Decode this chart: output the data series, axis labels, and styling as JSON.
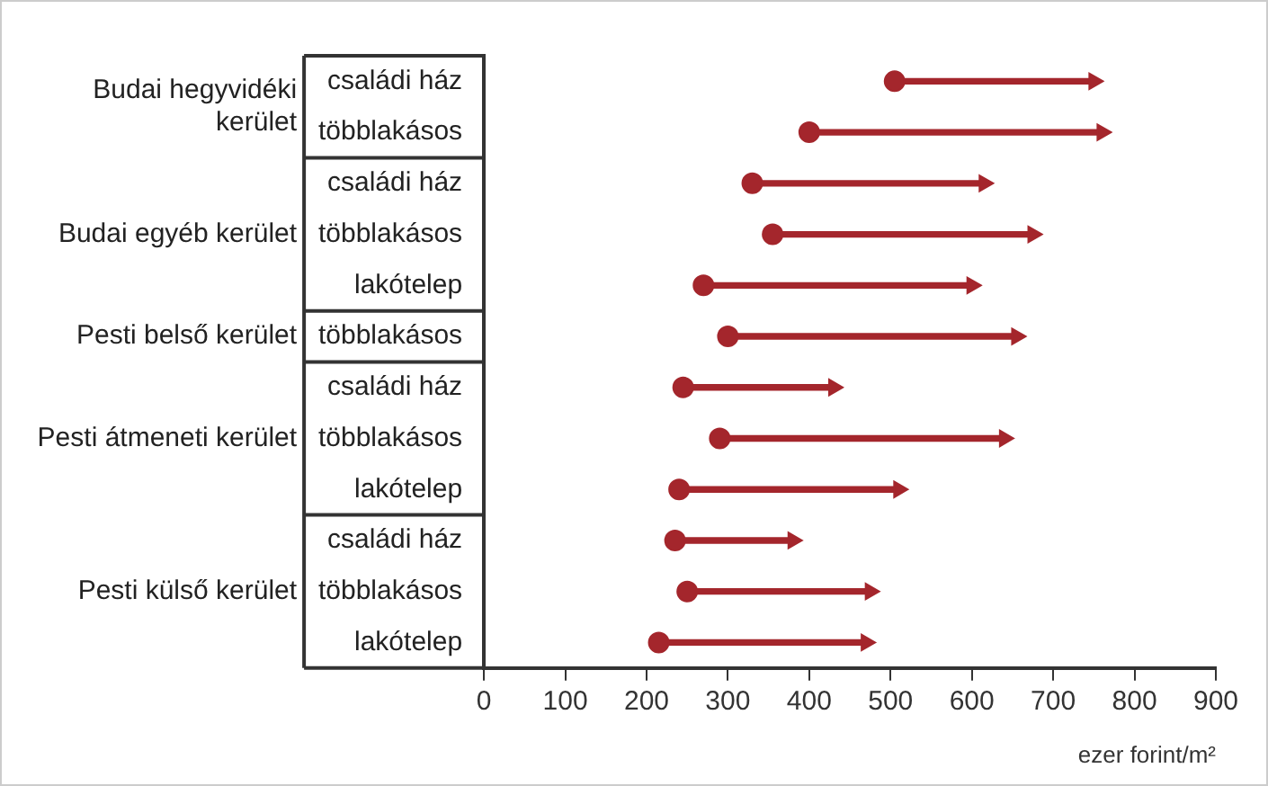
{
  "chart_data": {
    "type": "bar",
    "orientation": "horizontal",
    "xlabel": "ezer forint/m²",
    "categories": [
      "családi ház",
      "többlakásos",
      "családi ház",
      "többlakásos",
      "lakótelep",
      "többlakásos",
      "családi ház",
      "többlakásos",
      "lakótelep",
      "családi ház",
      "többlakásos",
      "lakótelep"
    ],
    "series": [
      {
        "color": "#a4262c",
        "base": [
          505,
          400,
          330,
          355,
          270,
          300,
          245,
          290,
          240,
          235,
          250,
          215
        ],
        "values": [
          245,
          360,
          285,
          320,
          330,
          355,
          185,
          350,
          270,
          145,
          225,
          255
        ]
      },
      {
        "type": "scatter",
        "color": "#a4262c",
        "marker": "circle",
        "values": [
          505,
          400,
          330,
          355,
          270,
          300,
          245,
          290,
          240,
          235,
          250,
          215
        ]
      },
      {
        "type": "scatter",
        "color": "#a4262c",
        "marker": "triangle",
        "values": [
          750,
          760,
          615,
          675,
          600,
          655,
          430,
          640,
          510,
          380,
          475,
          470
        ]
      }
    ],
    "legend": false,
    "grid": false,
    "xlim": [
      0,
      900
    ],
    "xticks": [
      0,
      100,
      200,
      300,
      400,
      500,
      600,
      700,
      800,
      900
    ],
    "annotations": [
      "Budai hegyvidéki kerület",
      "Budai egyéb kerület",
      "Pesti belső kerület",
      "Pesti átmeneti kerület",
      "Pesti külső kerület"
    ]
  }
}
